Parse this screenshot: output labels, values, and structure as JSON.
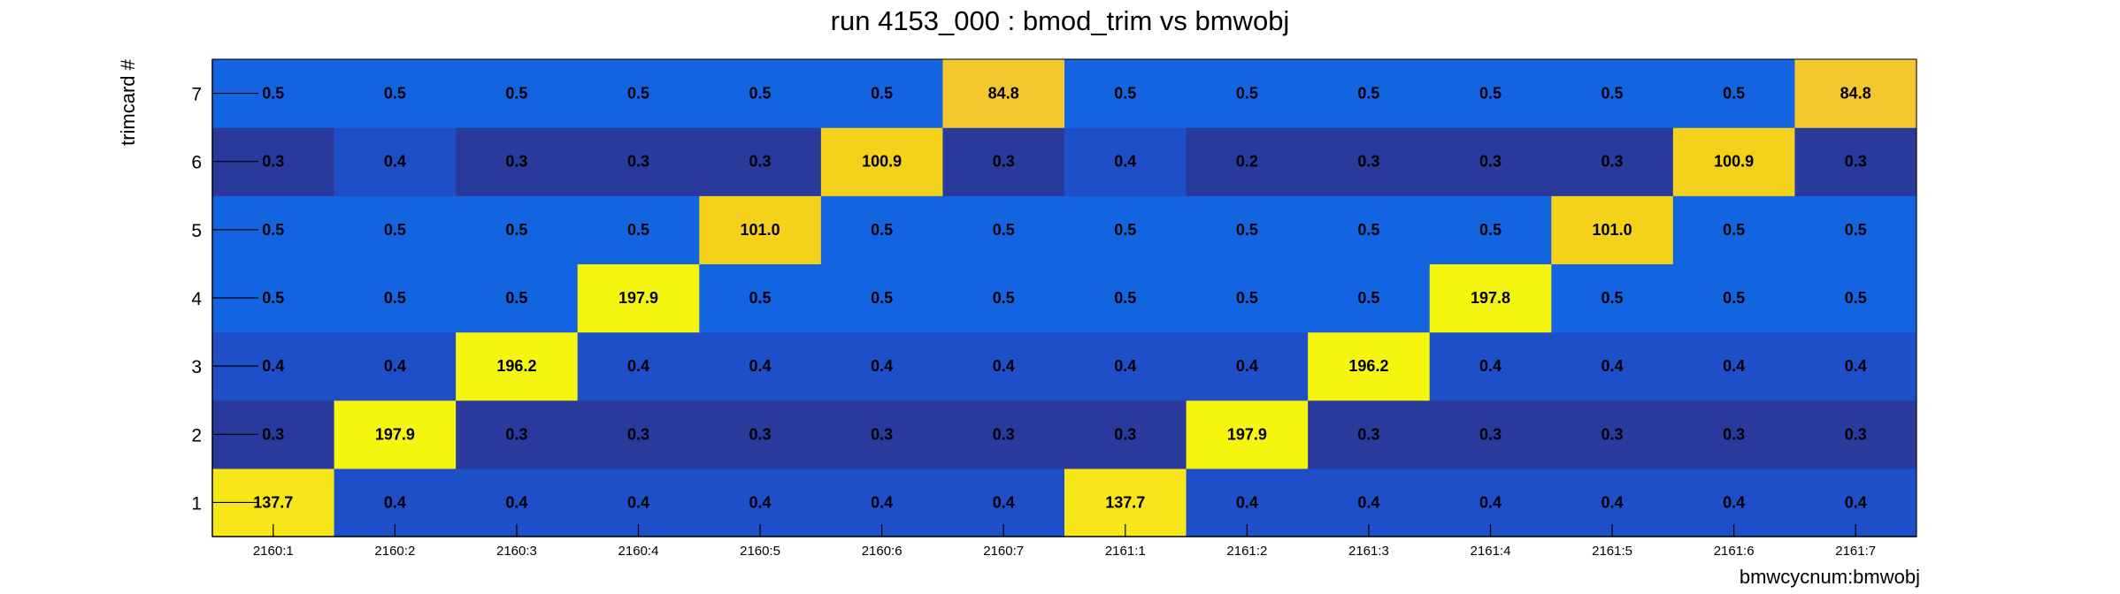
{
  "chart_data": {
    "type": "heatmap",
    "title": "run 4153_000 : bmod_trim vs bmwobj",
    "xlabel": "bmwcycnum:bmwobj",
    "ylabel": "trimcard #",
    "x_categories": [
      "2160:1",
      "2160:2",
      "2160:3",
      "2160:4",
      "2160:5",
      "2160:6",
      "2160:7",
      "2161:1",
      "2161:2",
      "2161:3",
      "2161:4",
      "2161:5",
      "2161:6",
      "2161:7"
    ],
    "y_categories": [
      "1",
      "2",
      "3",
      "4",
      "5",
      "6",
      "7"
    ],
    "values": [
      [
        "137.7",
        "0.4",
        "0.4",
        "0.4",
        "0.4",
        "0.4",
        "0.4",
        "137.7",
        "0.4",
        "0.4",
        "0.4",
        "0.4",
        "0.4",
        "0.4"
      ],
      [
        "0.3",
        "197.9",
        "0.3",
        "0.3",
        "0.3",
        "0.3",
        "0.3",
        "0.3",
        "197.9",
        "0.3",
        "0.3",
        "0.3",
        "0.3",
        "0.3"
      ],
      [
        "0.4",
        "0.4",
        "196.2",
        "0.4",
        "0.4",
        "0.4",
        "0.4",
        "0.4",
        "0.4",
        "196.2",
        "0.4",
        "0.4",
        "0.4",
        "0.4"
      ],
      [
        "0.5",
        "0.5",
        "0.5",
        "197.9",
        "0.5",
        "0.5",
        "0.5",
        "0.5",
        "0.5",
        "0.5",
        "197.8",
        "0.5",
        "0.5",
        "0.5"
      ],
      [
        "0.5",
        "0.5",
        "0.5",
        "0.5",
        "101.0",
        "0.5",
        "0.5",
        "0.5",
        "0.5",
        "0.5",
        "0.5",
        "101.0",
        "0.5",
        "0.5"
      ],
      [
        "0.3",
        "0.4",
        "0.3",
        "0.3",
        "0.3",
        "100.9",
        "0.3",
        "0.4",
        "0.2",
        "0.3",
        "0.3",
        "0.3",
        "100.9",
        "0.3"
      ],
      [
        "0.5",
        "0.5",
        "0.5",
        "0.5",
        "0.5",
        "0.5",
        "84.8",
        "0.5",
        "0.5",
        "0.5",
        "0.5",
        "0.5",
        "0.5",
        "84.8"
      ]
    ],
    "colors": {
      "very_low": "#2a3a9c",
      "low": "#1e4ec8",
      "mid_low": "#1560dc",
      "mid": "#1364e0",
      "high_mid": "#f5c72e",
      "high": "#f4d21c",
      "very_high": "#f5f510"
    },
    "grid": false,
    "legend": "none"
  }
}
